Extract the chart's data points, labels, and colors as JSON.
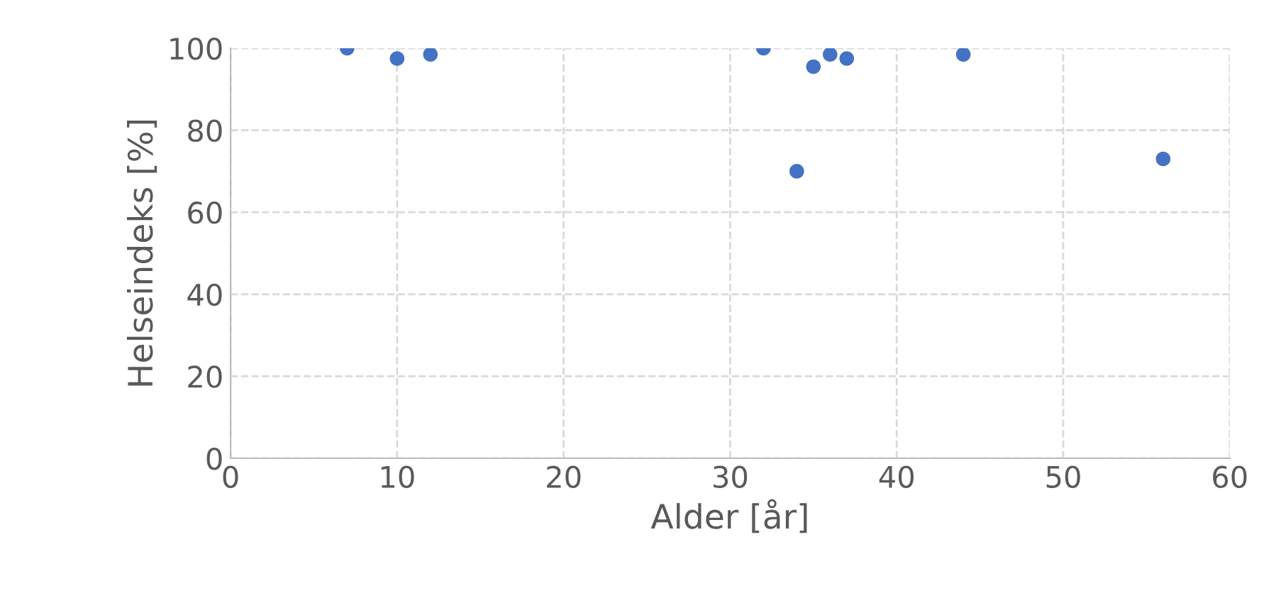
{
  "chart_data": {
    "type": "scatter",
    "xlabel": "Alder [år]",
    "ylabel": "Helseindeks [%]",
    "x": [
      7,
      10,
      12,
      32,
      34,
      35,
      36,
      37,
      44,
      56
    ],
    "values": [
      100,
      97.5,
      98.5,
      100,
      70,
      95.5,
      98.5,
      97.5,
      98.5,
      73
    ],
    "color": "#4472c4",
    "marker": "circle",
    "xlim": [
      0,
      60
    ],
    "xticks": [
      0,
      10,
      20,
      30,
      40,
      50,
      60
    ],
    "ylim": [
      0,
      100
    ],
    "yticks": [
      0,
      20,
      40,
      60,
      80,
      100
    ],
    "grid": true
  }
}
